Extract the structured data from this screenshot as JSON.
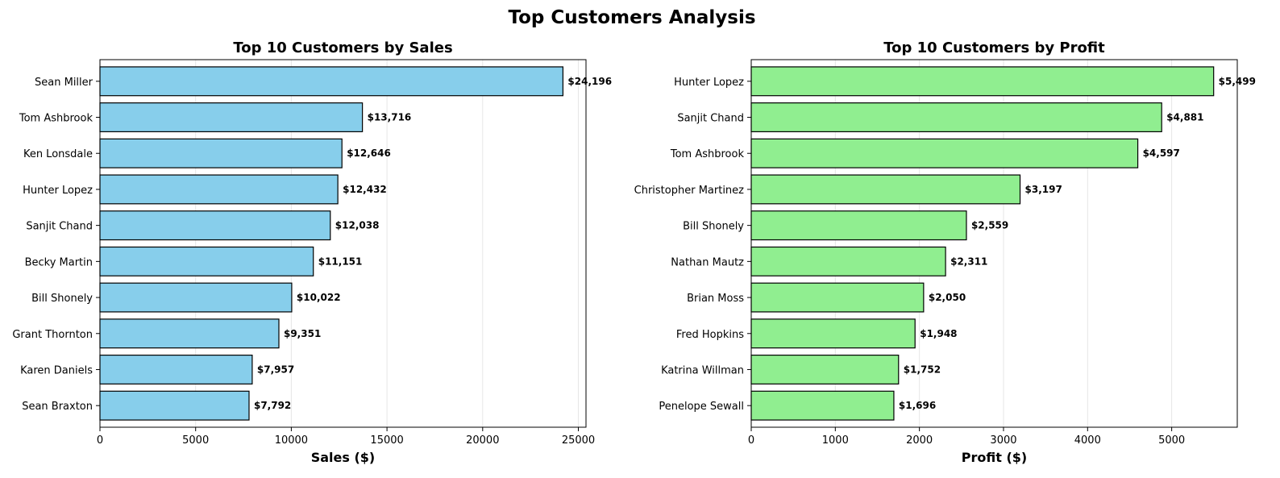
{
  "figure": {
    "title": "Top Customers Analysis"
  },
  "chart_data": [
    {
      "type": "bar",
      "orientation": "horizontal",
      "title": "Top 10 Customers by Sales",
      "xlabel": "Sales ($)",
      "ylabel": "",
      "categories": [
        "Sean Miller",
        "Tom Ashbrook",
        "Ken Lonsdale",
        "Hunter Lopez",
        "Sanjit Chand",
        "Becky Martin",
        "Bill Shonely",
        "Grant Thornton",
        "Karen Daniels",
        "Sean Braxton"
      ],
      "values": [
        24196,
        13716,
        12646,
        12432,
        12038,
        11151,
        10022,
        9351,
        7957,
        7792
      ],
      "value_labels": [
        "$24,196",
        "$13,716",
        "$12,646",
        "$12,432",
        "$12,038",
        "$11,151",
        "$10,022",
        "$9,351",
        "$7,957",
        "$7,792"
      ],
      "xlim": [
        0,
        25400
      ],
      "xticks": [
        0,
        5000,
        10000,
        15000,
        20000,
        25000
      ],
      "xtick_labels": [
        "0",
        "5000",
        "10000",
        "15000",
        "20000",
        "25000"
      ],
      "grid": "x",
      "bar_color": "#87ceeb",
      "edge_color": "#000000"
    },
    {
      "type": "bar",
      "orientation": "horizontal",
      "title": "Top 10 Customers by Profit",
      "xlabel": "Profit ($)",
      "ylabel": "",
      "categories": [
        "Hunter Lopez",
        "Sanjit Chand",
        "Tom Ashbrook",
        "Christopher Martinez",
        "Bill Shonely",
        "Nathan Mautz",
        "Brian Moss",
        "Fred Hopkins",
        "Katrina Willman",
        "Penelope Sewall"
      ],
      "values": [
        5499,
        4881,
        4597,
        3197,
        2559,
        2311,
        2050,
        1948,
        1752,
        1696
      ],
      "value_labels": [
        "$5,499",
        "$4,881",
        "$4,597",
        "$3,197",
        "$2,559",
        "$2,311",
        "$2,050",
        "$1,948",
        "$1,752",
        "$1,696"
      ],
      "xlim": [
        0,
        5780
      ],
      "xticks": [
        0,
        1000,
        2000,
        3000,
        4000,
        5000
      ],
      "xtick_labels": [
        "0",
        "1000",
        "2000",
        "3000",
        "4000",
        "5000"
      ],
      "grid": "x",
      "bar_color": "#90ee90",
      "edge_color": "#000000"
    }
  ]
}
